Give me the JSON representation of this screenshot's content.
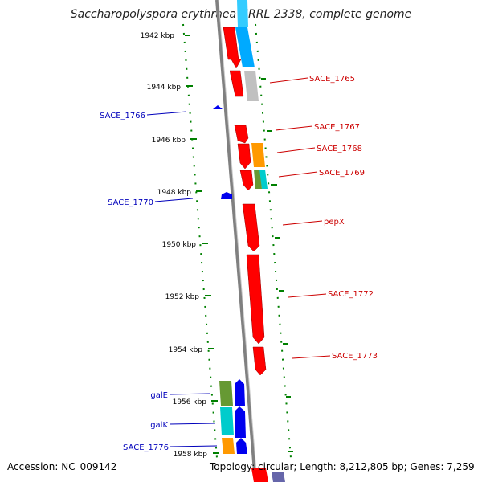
{
  "title": "Saccharopolyspora erythraea NRRL 2338, complete genome",
  "accession": "Accession: NC_009142",
  "topology": "Topology: circular; Length: 8,212,805 bp; Genes: 7,259",
  "colors": {
    "forward_strand": "#ff0000",
    "reverse_strand": "#0000ee",
    "forward_label": "#cc0000",
    "reverse_label": "#0000bb",
    "tick_marks": "#008000",
    "backbone": "#808080"
  },
  "scale": {
    "unit": "kbp",
    "ticks": [
      {
        "value": 1942,
        "label": "1942 kbp"
      },
      {
        "value": 1944,
        "label": "1944 kbp"
      },
      {
        "value": 1946,
        "label": "1946 kbp"
      },
      {
        "value": 1948,
        "label": "1948 kbp"
      },
      {
        "value": 1950,
        "label": "1950 kbp"
      },
      {
        "value": 1952,
        "label": "1952 kbp"
      },
      {
        "value": 1954,
        "label": "1954 kbp"
      },
      {
        "value": 1956,
        "label": "1956 kbp"
      },
      {
        "value": 1958,
        "label": "1958 kbp"
      }
    ]
  },
  "genes_forward": [
    {
      "label": "SACE_1765",
      "strand": "+"
    },
    {
      "label": "SACE_1767",
      "strand": "+"
    },
    {
      "label": "SACE_1768",
      "strand": "+"
    },
    {
      "label": "SACE_1769",
      "strand": "+"
    },
    {
      "label": "pepX",
      "strand": "+"
    },
    {
      "label": "SACE_1772",
      "strand": "+"
    },
    {
      "label": "SACE_1773",
      "strand": "+"
    }
  ],
  "genes_reverse": [
    {
      "label": "SACE_1766",
      "strand": "-"
    },
    {
      "label": "SACE_1770",
      "strand": "-"
    },
    {
      "label": "galE",
      "strand": "-"
    },
    {
      "label": "galK",
      "strand": "-"
    },
    {
      "label": "SACE_1776",
      "strand": "-"
    }
  ]
}
